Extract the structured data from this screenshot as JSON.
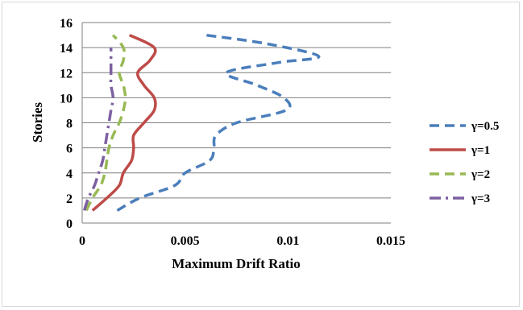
{
  "chart_data": {
    "type": "line",
    "xlabel": "Maximum Drift Ratio",
    "ylabel": "Stories",
    "xlim": [
      0,
      0.015
    ],
    "ylim": [
      0,
      16
    ],
    "x_ticks": [
      "0",
      "0.005",
      "0.01",
      "0.015"
    ],
    "y_ticks": [
      "0",
      "2",
      "4",
      "6",
      "8",
      "10",
      "12",
      "14",
      "16"
    ],
    "grid": "horizontal",
    "legend_position": "right",
    "series": [
      {
        "name": "γ=0.5",
        "color": "#4a7ebb",
        "style": "dashed",
        "points": [
          [
            0.0017,
            1
          ],
          [
            0.0028,
            2
          ],
          [
            0.0045,
            3
          ],
          [
            0.005,
            4
          ],
          [
            0.0062,
            5
          ],
          [
            0.0064,
            6
          ],
          [
            0.0065,
            7
          ],
          [
            0.0075,
            8
          ],
          [
            0.0099,
            9
          ],
          [
            0.0098,
            10
          ],
          [
            0.0085,
            11
          ],
          [
            0.007,
            12
          ],
          [
            0.0095,
            12.8
          ],
          [
            0.0115,
            13.3
          ],
          [
            0.009,
            14.3
          ],
          [
            0.006,
            15
          ]
        ]
      },
      {
        "name": "γ=1",
        "color": "#be4b48",
        "style": "solid",
        "points": [
          [
            0.0005,
            1
          ],
          [
            0.0012,
            2
          ],
          [
            0.0018,
            3
          ],
          [
            0.002,
            4
          ],
          [
            0.0024,
            5
          ],
          [
            0.0025,
            6
          ],
          [
            0.0025,
            7
          ],
          [
            0.003,
            8
          ],
          [
            0.0035,
            9
          ],
          [
            0.0035,
            10
          ],
          [
            0.003,
            11
          ],
          [
            0.0027,
            12
          ],
          [
            0.0033,
            13
          ],
          [
            0.0035,
            14
          ],
          [
            0.0023,
            15
          ]
        ]
      },
      {
        "name": "γ=2",
        "color": "#98b954",
        "style": "dashed",
        "points": [
          [
            0.0002,
            1
          ],
          [
            0.0005,
            2
          ],
          [
            0.0009,
            3
          ],
          [
            0.0011,
            4
          ],
          [
            0.0012,
            5
          ],
          [
            0.0013,
            6
          ],
          [
            0.0015,
            7
          ],
          [
            0.0018,
            8
          ],
          [
            0.002,
            9
          ],
          [
            0.0021,
            10
          ],
          [
            0.002,
            11
          ],
          [
            0.0018,
            12
          ],
          [
            0.002,
            13
          ],
          [
            0.002,
            14
          ],
          [
            0.0015,
            15
          ]
        ]
      },
      {
        "name": "γ=3",
        "color": "#7d60a0",
        "style": "dashdot",
        "points": [
          [
            0.0001,
            1
          ],
          [
            0.0003,
            2
          ],
          [
            0.0006,
            3
          ],
          [
            0.0008,
            4
          ],
          [
            0.001,
            5
          ],
          [
            0.0011,
            6
          ],
          [
            0.0012,
            7
          ],
          [
            0.0013,
            8
          ],
          [
            0.0014,
            9
          ],
          [
            0.0015,
            10
          ],
          [
            0.0014,
            11
          ],
          [
            0.0014,
            12
          ],
          [
            0.0014,
            13
          ],
          [
            0.0014,
            14
          ]
        ]
      }
    ]
  }
}
